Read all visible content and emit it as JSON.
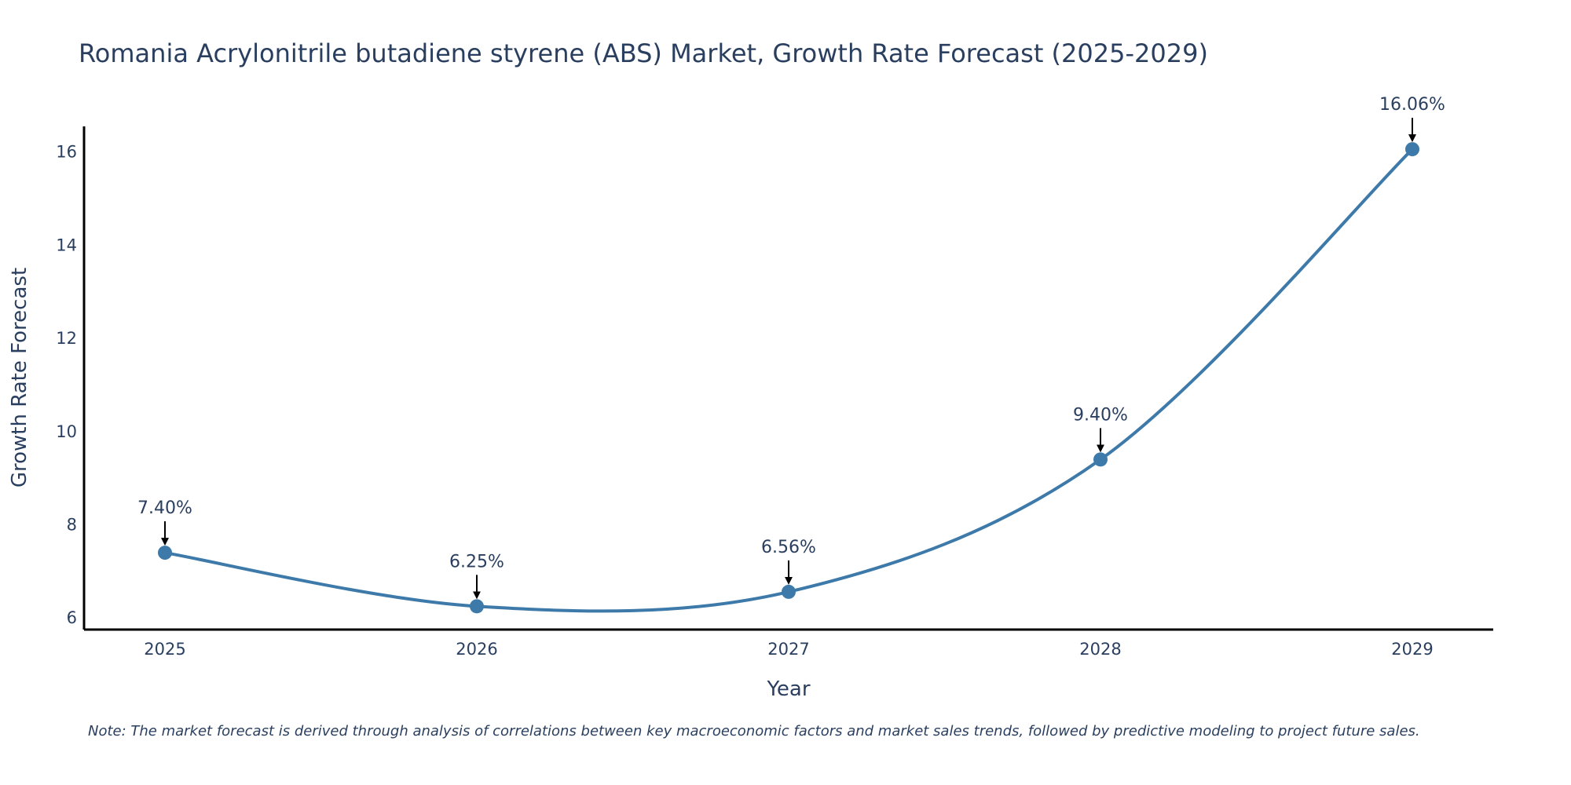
{
  "chart_data": {
    "type": "line",
    "title": "Romania Acrylonitrile butadiene styrene (ABS) Market, Growth Rate Forecast (2025-2029)",
    "xlabel": "Year",
    "ylabel": "Growth Rate Forecast",
    "categories": [
      "2025",
      "2026",
      "2027",
      "2028",
      "2029"
    ],
    "series": [
      {
        "name": "Growth Rate Forecast",
        "values": [
          7.4,
          6.25,
          6.56,
          9.4,
          16.06
        ]
      }
    ],
    "data_labels": [
      "7.40%",
      "6.25%",
      "6.56%",
      "9.40%",
      "16.06%"
    ],
    "yticks": [
      6,
      8,
      10,
      12,
      14,
      16
    ],
    "ylim": [
      5.75,
      16.55
    ],
    "grid": false,
    "line_color": "#3d7aa9",
    "marker_color": "#3d7aa9",
    "arrow_color": "#000000",
    "note": "Note: The market forecast is derived through analysis of correlations between key macroeconomic factors and market sales trends, followed by predictive modeling to project future sales."
  }
}
